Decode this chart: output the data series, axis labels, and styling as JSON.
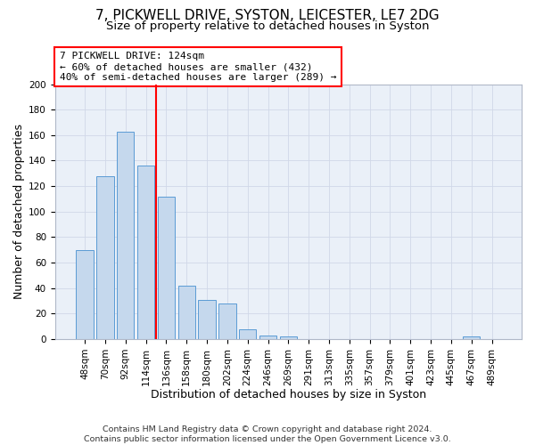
{
  "title": "7, PICKWELL DRIVE, SYSTON, LEICESTER, LE7 2DG",
  "subtitle": "Size of property relative to detached houses in Syston",
  "xlabel": "Distribution of detached houses by size in Syston",
  "ylabel": "Number of detached properties",
  "footer_lines": [
    "Contains HM Land Registry data © Crown copyright and database right 2024.",
    "Contains public sector information licensed under the Open Government Licence v3.0."
  ],
  "bar_labels": [
    "48sqm",
    "70sqm",
    "92sqm",
    "114sqm",
    "136sqm",
    "158sqm",
    "180sqm",
    "202sqm",
    "224sqm",
    "246sqm",
    "269sqm",
    "291sqm",
    "313sqm",
    "335sqm",
    "357sqm",
    "379sqm",
    "401sqm",
    "423sqm",
    "445sqm",
    "467sqm",
    "489sqm"
  ],
  "bar_values": [
    70,
    128,
    163,
    136,
    112,
    42,
    31,
    28,
    8,
    3,
    2,
    0,
    0,
    0,
    0,
    0,
    0,
    0,
    0,
    2,
    0
  ],
  "bar_color": "#c5d8ed",
  "bar_edgecolor": "#5b9bd5",
  "ylim": [
    0,
    200
  ],
  "yticks": [
    0,
    20,
    40,
    60,
    80,
    100,
    120,
    140,
    160,
    180,
    200
  ],
  "vline_color": "red",
  "annotation_box_text": [
    "7 PICKWELL DRIVE: 124sqm",
    "← 60% of detached houses are smaller (432)",
    "40% of semi-detached houses are larger (289) →"
  ],
  "grid_color": "#d0d8e8",
  "background_color": "#eaf0f8",
  "title_fontsize": 11,
  "subtitle_fontsize": 9.5,
  "axis_label_fontsize": 9,
  "tick_fontsize": 7.5,
  "annotation_fontsize": 8,
  "footer_fontsize": 6.8
}
